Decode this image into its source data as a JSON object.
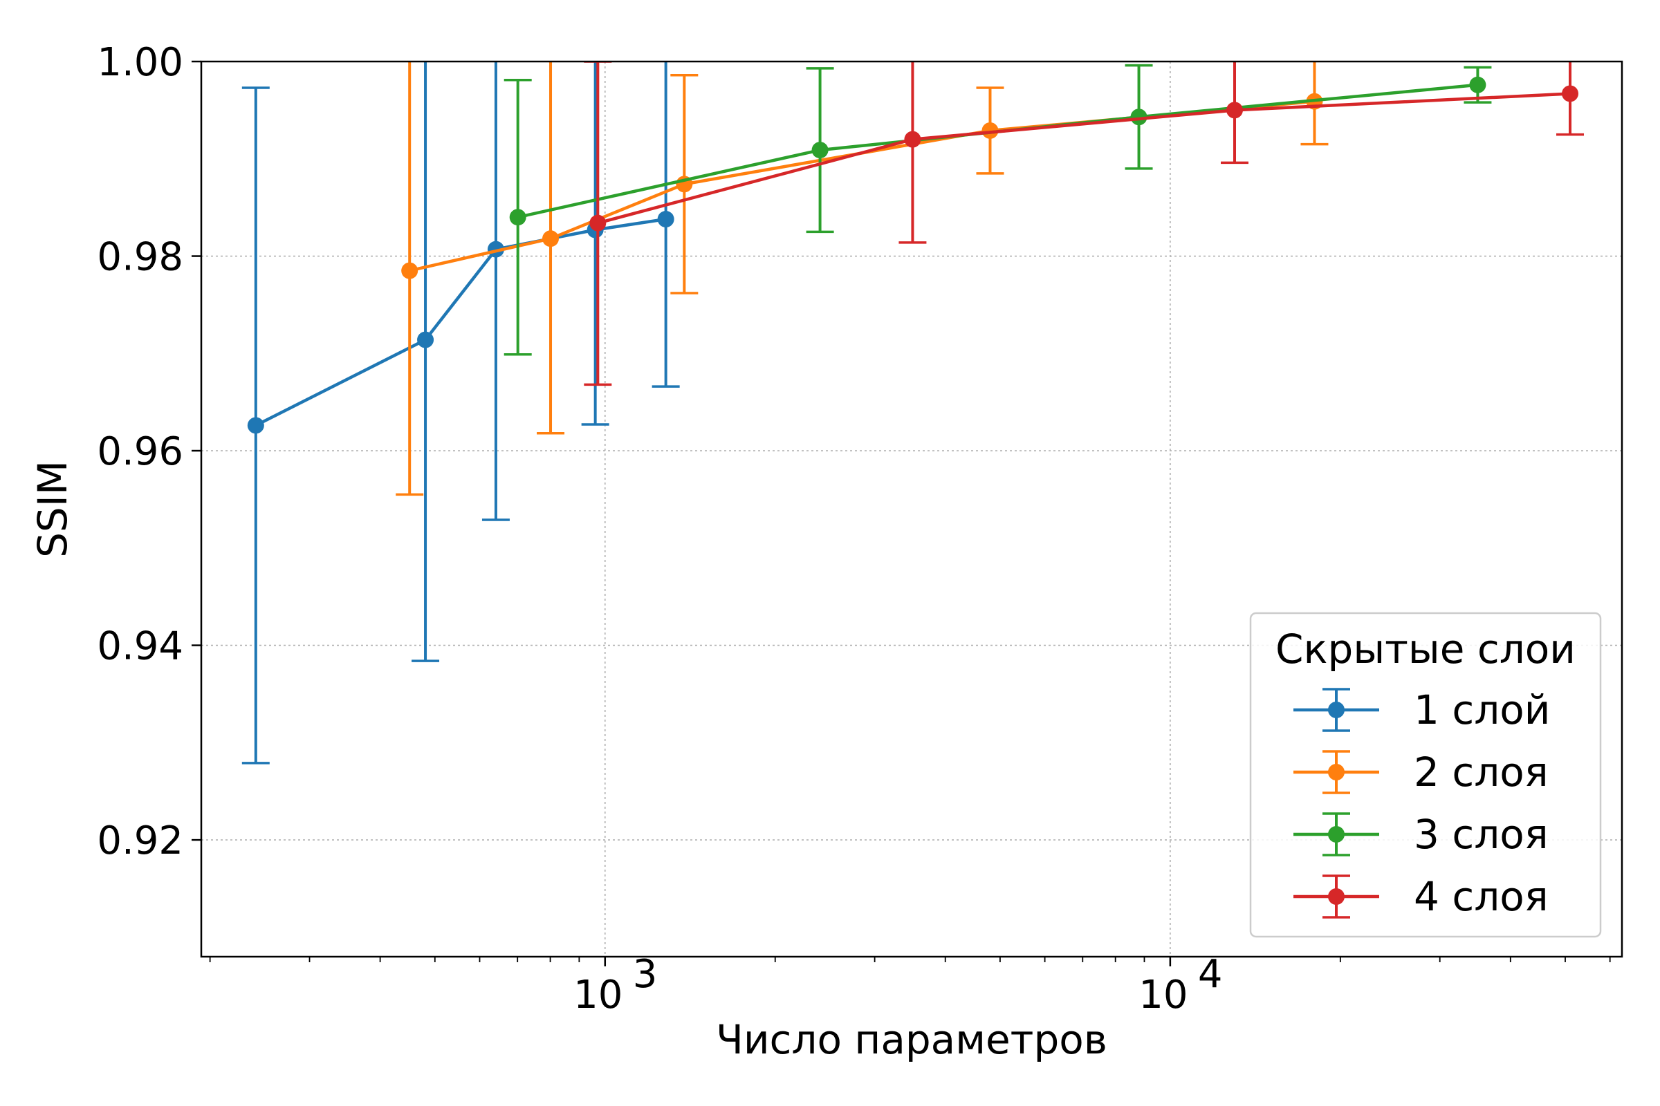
{
  "chart_data": {
    "type": "line",
    "xlabel": "Число параметров",
    "ylabel": "SSIM",
    "xscale": "log",
    "xlim": [
      193,
      63000
    ],
    "ylim": [
      0.908,
      1.0
    ],
    "grid": true,
    "yticks": [
      "0.92",
      "0.94",
      "0.96",
      "0.98",
      "1.00"
    ],
    "xticks": [
      {
        "value": 1000,
        "base": "10",
        "exp": "3"
      },
      {
        "value": 10000,
        "base": "10",
        "exp": "4"
      }
    ],
    "legend": {
      "title": "Скрытые слои",
      "position": "bottom-right"
    },
    "series": [
      {
        "name": "1 слой",
        "color": "#1f77b4",
        "x": [
          241,
          481,
          641,
          961,
          1281
        ],
        "y": [
          0.9626,
          0.9714,
          0.9807,
          0.9827,
          0.9838
        ],
        "err": [
          0.0347,
          0.033,
          0.0278,
          0.02,
          0.0172
        ]
      },
      {
        "name": "2 слоя",
        "color": "#ff7f0e",
        "x": [
          451,
          801,
          1381,
          4801,
          18001
        ],
        "y": [
          0.9785,
          0.9818,
          0.9874,
          0.9929,
          0.9959
        ],
        "err": [
          0.023,
          0.02,
          0.0112,
          0.0044,
          0.0044
        ]
      },
      {
        "name": "3 слоя",
        "color": "#2ca02c",
        "x": [
          701,
          2401,
          8801,
          35000
        ],
        "y": [
          0.984,
          0.9909,
          0.9943,
          0.9976
        ],
        "err": [
          0.0141,
          0.0084,
          0.0053,
          0.0018
        ]
      },
      {
        "name": "4 слоя",
        "color": "#d62728",
        "x": [
          971,
          3501,
          13001,
          51000
        ],
        "y": [
          0.9834,
          0.992,
          0.995,
          0.9967
        ],
        "err": [
          0.0166,
          0.0106,
          0.0054,
          0.0042
        ]
      }
    ]
  }
}
